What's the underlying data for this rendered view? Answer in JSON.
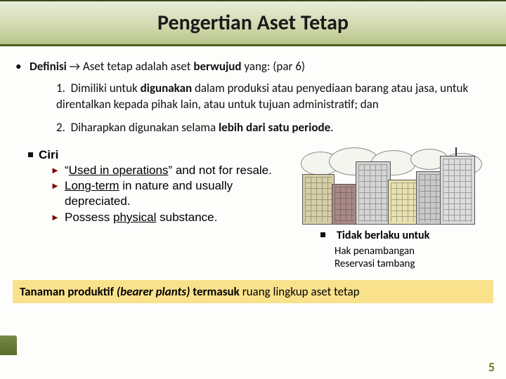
{
  "title": "Pengertian Aset Tetap",
  "definisi": {
    "label": "Definisi",
    "arrow": "→",
    "text_before": " Aset tetap adalah aset ",
    "text_bold": "berwujud",
    "text_after": " yang: (par 6)",
    "items": [
      {
        "pre": "Dimiliki untuk ",
        "bold": "digunakan",
        "post": " dalam produksi atau penyediaan barang atau jasa, untuk direntalkan kepada pihak lain, atau untuk tujuan administratif; dan"
      },
      {
        "pre": "Diharapkan digunakan selama ",
        "bold": "lebih dari satu periode",
        "post": "."
      }
    ]
  },
  "ciri": {
    "label": "Ciri",
    "items": [
      {
        "pre": "“",
        "under": "Used in operations",
        "post": "” and not for resale."
      },
      {
        "pre": "",
        "under": "Long-term",
        "post": " in nature and usually depreciated."
      },
      {
        "pre": "Possess ",
        "under": "physical",
        "post": " substance."
      }
    ]
  },
  "right": {
    "tidak_label": "Tidak berlaku untuk",
    "sub1": "Hak penambangan",
    "sub2": "Reservasi tambang"
  },
  "yellow": {
    "bold1": "Tanaman produktif ",
    "ital": "(bearer plants)",
    "bold2": " termasuk ",
    "plain": "ruang lingkup aset tetap"
  },
  "page_number": "5",
  "colors": {
    "title_band_border": "#49611d",
    "yellow_band": "#fae28d",
    "page_num": "#6a8020",
    "triangle": "#7a0000"
  }
}
